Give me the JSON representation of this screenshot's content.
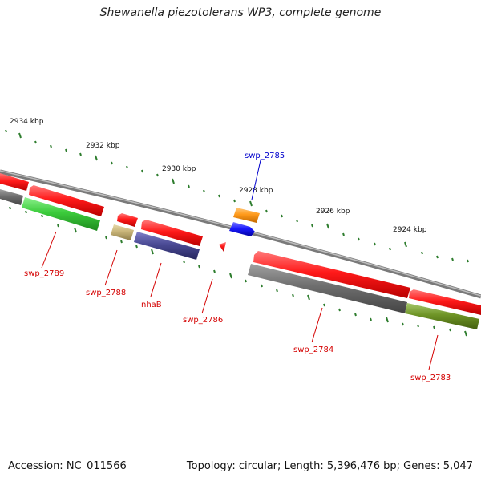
{
  "title": "Shewanella piezotolerans WP3, complete genome",
  "footer": {
    "accession": "Accession: NC_011566",
    "summary": "Topology: circular; Length: 5,396,476 bp; Genes: 5,047"
  },
  "scale_labels": [
    "2934 kbp",
    "2932 kbp",
    "2930 kbp",
    "2928 kbp",
    "2926 kbp",
    "2924 kbp"
  ],
  "colors": {
    "backbone": "#8a8a8a",
    "gene_red": "#ff1a1a",
    "gene_gray": "#6e6e6e",
    "gene_green": "#3ccc3c",
    "gene_khaki": "#c8b478",
    "gene_navy": "#4a4a94",
    "gene_orange": "#ff9a1a",
    "gene_blue": "#1a1aff",
    "gene_olive": "#6e9426",
    "tick": "#2e7d2e",
    "label_red": "#d40000",
    "label_blue": "#0000cc"
  },
  "gene_labels": [
    {
      "id": "swp_2789",
      "text": "swp_2789",
      "color": "red"
    },
    {
      "id": "swp_2788",
      "text": "swp_2788",
      "color": "red"
    },
    {
      "id": "nhaB",
      "text": "nhaB",
      "color": "red"
    },
    {
      "id": "swp_2786",
      "text": "swp_2786",
      "color": "red"
    },
    {
      "id": "swp_2785",
      "text": "swp_2785",
      "color": "blue"
    },
    {
      "id": "swp_2784",
      "text": "swp_2784",
      "color": "red"
    },
    {
      "id": "swp_2783",
      "text": "swp_2783",
      "color": "red"
    }
  ]
}
